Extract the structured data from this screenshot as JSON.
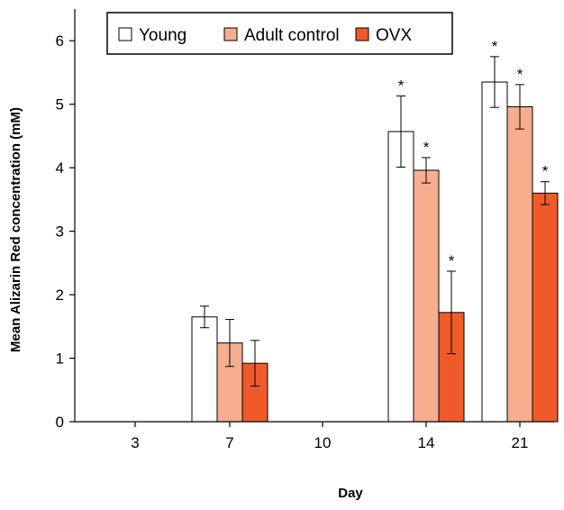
{
  "chart_data": {
    "type": "bar",
    "categories": [
      "3",
      "7",
      "10",
      "14",
      "21"
    ],
    "xlabel": "Day",
    "ylabel": "Mean Alizarin Red concentration (mM)",
    "ylim": [
      0,
      6.5
    ],
    "yticks": [
      0,
      1,
      2,
      3,
      4,
      5,
      6
    ],
    "grid": false,
    "legend_position": "top",
    "series": [
      {
        "name": "Young",
        "color": "#ffffff",
        "values": [
          null,
          1.65,
          null,
          4.57,
          5.35
        ],
        "errors": [
          null,
          0.17,
          null,
          0.56,
          0.4
        ],
        "significant": [
          false,
          false,
          false,
          true,
          true
        ]
      },
      {
        "name": "Adult control",
        "color": "#f6ae8e",
        "values": [
          null,
          1.24,
          null,
          3.96,
          4.96
        ],
        "errors": [
          null,
          0.37,
          null,
          0.2,
          0.35
        ],
        "significant": [
          false,
          false,
          false,
          true,
          true
        ]
      },
      {
        "name": "OVX",
        "color": "#ee5a2a",
        "values": [
          null,
          0.92,
          null,
          1.72,
          3.6
        ],
        "errors": [
          null,
          0.36,
          null,
          0.65,
          0.18
        ],
        "significant": [
          false,
          false,
          false,
          true,
          true
        ]
      }
    ],
    "significance_marker": "*"
  }
}
